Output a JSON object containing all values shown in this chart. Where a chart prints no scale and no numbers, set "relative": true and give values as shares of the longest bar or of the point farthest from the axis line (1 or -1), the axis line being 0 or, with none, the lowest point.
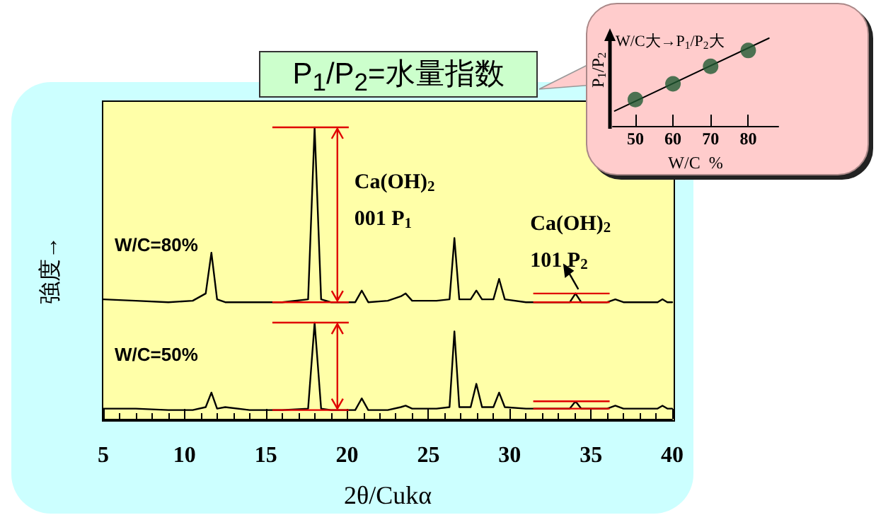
{
  "chart_data": [
    {
      "type": "line",
      "title": "P$_{1}$/P$_{2}$=水量指数",
      "xlabel": "2θ/Cukα",
      "ylabel": "強度→",
      "relative": true,
      "xlim": [
        5,
        40
      ],
      "xticks": [
        5,
        10,
        15,
        20,
        25,
        30,
        35,
        40
      ],
      "grid": false,
      "legend": false,
      "marker": "none",
      "x": [
        5,
        7,
        9,
        10.5,
        11.3,
        11.65,
        12.0,
        12.5,
        14,
        16,
        17.6,
        18.0,
        18.4,
        19,
        20.5,
        20.9,
        21.3,
        22.5,
        23.3,
        23.6,
        24,
        25.5,
        26.3,
        26.6,
        26.9,
        27.6,
        27.95,
        28.3,
        29.0,
        29.35,
        29.7,
        31,
        33.7,
        34.05,
        34.4,
        36.0,
        36.5,
        37,
        39.1,
        39.4,
        39.7,
        40
      ],
      "series": [
        {
          "name": "W/C=80%",
          "color": "#000000",
          "values": [
            0.41,
            0.405,
            0.4,
            0.405,
            0.43,
            0.57,
            0.41,
            0.4,
            0.4,
            0.4,
            0.41,
            1.0,
            0.41,
            0.4,
            0.4,
            0.44,
            0.4,
            0.405,
            0.42,
            0.43,
            0.405,
            0.405,
            0.41,
            0.62,
            0.41,
            0.41,
            0.44,
            0.41,
            0.41,
            0.48,
            0.41,
            0.4,
            0.4,
            0.43,
            0.4,
            0.4,
            0.41,
            0.4,
            0.4,
            0.41,
            0.4,
            0.4
          ]
        },
        {
          "name": "W/C=50%",
          "color": "#000000",
          "values": [
            0.035,
            0.035,
            0.03,
            0.03,
            0.04,
            0.09,
            0.035,
            0.04,
            0.03,
            0.03,
            0.035,
            0.33,
            0.035,
            0.03,
            0.03,
            0.07,
            0.03,
            0.03,
            0.04,
            0.045,
            0.035,
            0.035,
            0.04,
            0.3,
            0.04,
            0.04,
            0.12,
            0.04,
            0.04,
            0.09,
            0.04,
            0.035,
            0.035,
            0.06,
            0.035,
            0.035,
            0.045,
            0.035,
            0.035,
            0.045,
            0.035,
            0.035
          ]
        }
      ],
      "annotations": [
        "Ca(OH)$_{2}$",
        "001 P$_{1}$",
        "Ca(OH)$_{2}$",
        {
          "text": "101 P$_{2}$",
          "x": 34.05,
          "y": 0.43
        }
      ]
    },
    {
      "type": "scatter",
      "annotations": [
        "W/C大→P$_{1}$/P$_{2}$大"
      ],
      "xlabel": "W/C  %",
      "ylabel": "P$_{1}$/P$_{2}$",
      "relative": true,
      "xlim": [
        44,
        88
      ],
      "xticks": [
        50,
        60,
        70,
        80
      ],
      "grid": false,
      "legend": false,
      "marker": "circle",
      "x": [
        50,
        60,
        70,
        80
      ],
      "series": [
        {
          "color": "#1f5a32",
          "values": [
            0.3,
            0.48,
            0.68,
            0.86
          ]
        },
        {
          "type": "line",
          "marker": "none",
          "color": "#000000",
          "x": [
            44.5,
            85.5
          ],
          "values": [
            0.17,
            1.0
          ]
        }
      ]
    }
  ]
}
